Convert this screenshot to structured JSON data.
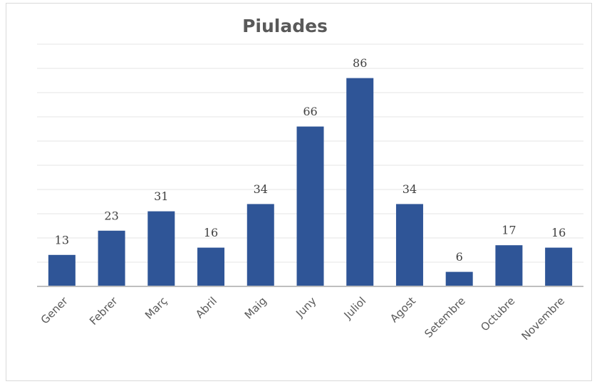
{
  "chart_data": {
    "type": "bar",
    "title": "Piulades",
    "categories": [
      "Gener",
      "Febrer",
      "Març",
      "Abril",
      "Maig",
      "Juny",
      "Juliol",
      "Agost",
      "Setembre",
      "Octubre",
      "Novembre"
    ],
    "values": [
      13,
      23,
      31,
      16,
      34,
      66,
      86,
      34,
      6,
      17,
      16
    ],
    "color": "#2f5597",
    "ylim": [
      0,
      100
    ],
    "yticks": [
      0,
      10,
      20,
      30,
      40,
      50,
      60,
      70,
      80,
      90,
      100
    ],
    "grid": true
  }
}
